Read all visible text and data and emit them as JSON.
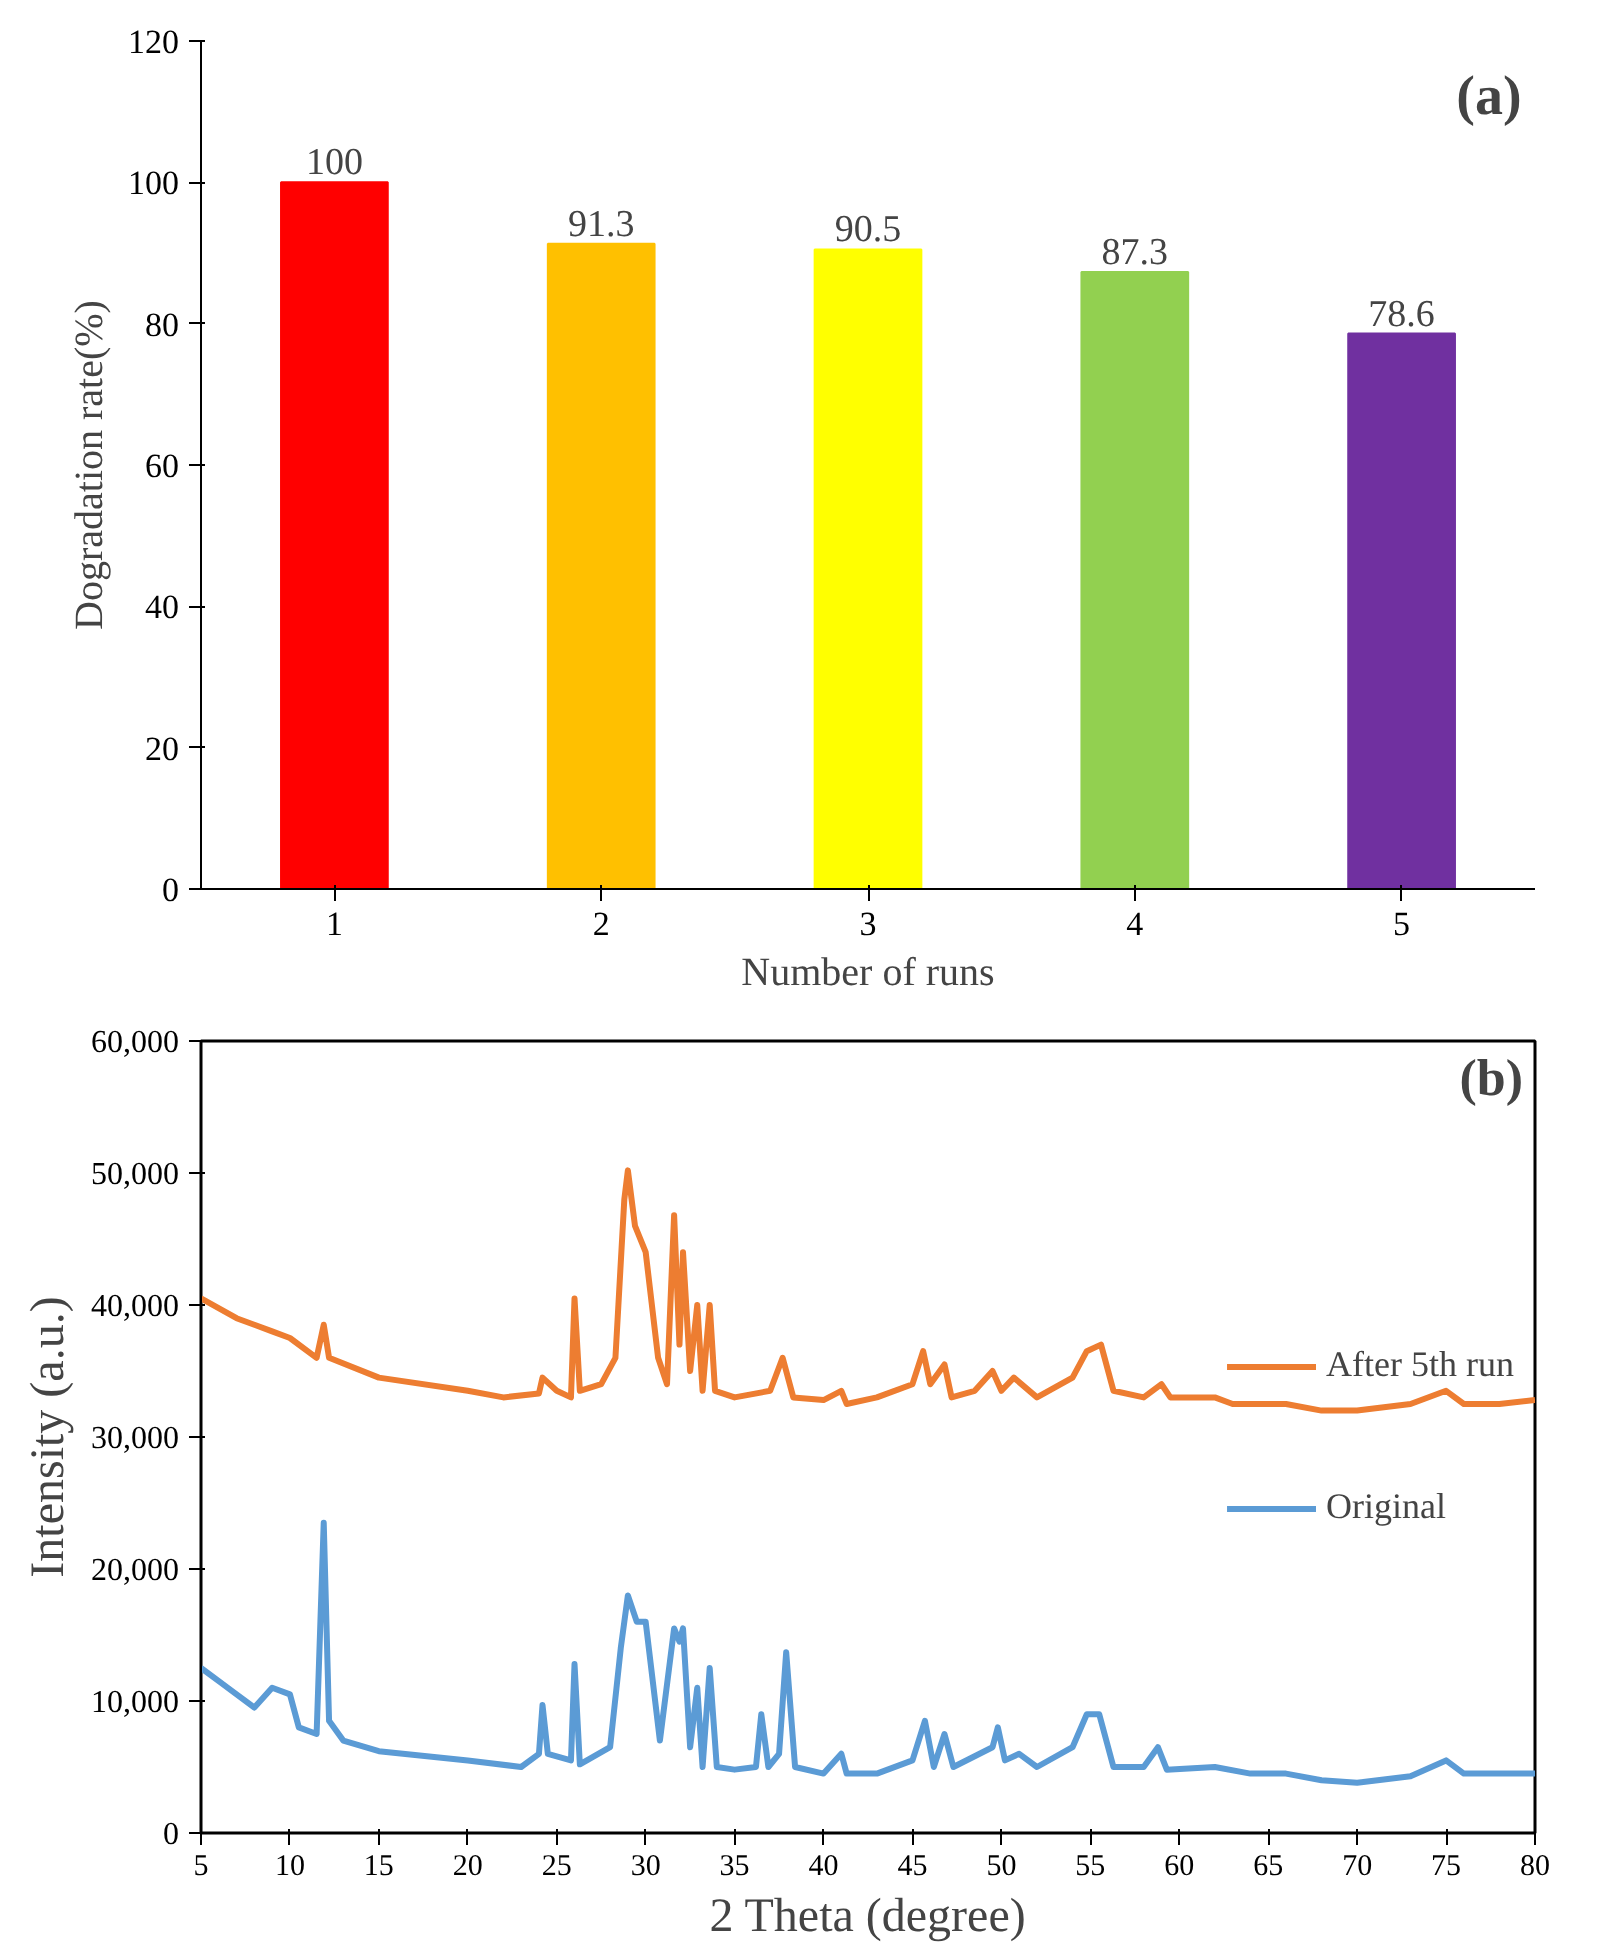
{
  "chart_data": [
    {
      "type": "bar",
      "categories": [
        "1",
        "2",
        "3",
        "4",
        "5"
      ],
      "values": [
        100,
        91.3,
        90.5,
        87.3,
        78.6
      ],
      "colors": [
        "#ff0000",
        "#ffc000",
        "#ffff00",
        "#92d050",
        "#7030a0"
      ],
      "xlabel": "Number of runs",
      "ylabel": "Dogradation rate(%)",
      "ylim": [
        0,
        120
      ],
      "yticks": [
        0,
        20,
        40,
        60,
        80,
        100,
        120
      ],
      "data_labels": true,
      "annotations": [
        "(a)"
      ]
    },
    {
      "type": "line",
      "xlabel": "2 Theta (degree)",
      "ylabel": "Intensity (a.u.)",
      "xlim": [
        5,
        80
      ],
      "xticks": [
        5,
        10,
        15,
        20,
        25,
        30,
        35,
        40,
        45,
        50,
        55,
        60,
        65,
        70,
        75,
        80
      ],
      "ylim": [
        0,
        60000
      ],
      "yticks": [
        {
          "value": 0,
          "label": "0"
        },
        {
          "value": 10000,
          "label": "10,000"
        },
        {
          "value": 20000,
          "label": "20,000"
        },
        {
          "value": 30000,
          "label": "30,000"
        },
        {
          "value": 40000,
          "label": "40,000"
        },
        {
          "value": 50000,
          "label": "50,000"
        },
        {
          "value": 60000,
          "label": "60,000"
        }
      ],
      "legend": "right",
      "annotations": [
        "(b)"
      ],
      "series": [
        {
          "name": "After 5th run",
          "color": "#ed7d31",
          "x": [
            5,
            7,
            9,
            10,
            11.5,
            11.9,
            12.2,
            15,
            20,
            22,
            24,
            24.2,
            25,
            25.8,
            26.0,
            26.3,
            27.5,
            28.3,
            28.8,
            29.0,
            29.4,
            30,
            30.7,
            31.2,
            31.6,
            31.9,
            32.1,
            32.5,
            32.9,
            33.2,
            33.6,
            33.9,
            35,
            37,
            37.7,
            38.3,
            40,
            41,
            41.3,
            43,
            45,
            45.6,
            46,
            46.8,
            47.2,
            48.5,
            49.5,
            50,
            50.7,
            52,
            54,
            54.8,
            55.6,
            56.3,
            58,
            59,
            59.5,
            62,
            63,
            66,
            68,
            70,
            73,
            75,
            76,
            78,
            80
          ],
          "values": [
            40500,
            39000,
            38000,
            37500,
            36000,
            38500,
            36000,
            34500,
            33500,
            33000,
            33300,
            34500,
            33500,
            33000,
            40500,
            33500,
            34000,
            36000,
            48000,
            50200,
            46000,
            44000,
            36000,
            34000,
            46800,
            37000,
            44000,
            35000,
            40000,
            33500,
            40000,
            33500,
            33000,
            33500,
            36000,
            33000,
            32800,
            33500,
            32500,
            33000,
            34000,
            36500,
            34000,
            35500,
            33000,
            33500,
            35000,
            33500,
            34500,
            33000,
            34500,
            36500,
            37000,
            33500,
            33000,
            34000,
            33000,
            33000,
            32500,
            32500,
            32000,
            32000,
            32500,
            33500,
            32500,
            32500,
            32800
          ]
        },
        {
          "name": "Original",
          "color": "#5b9bd5",
          "x": [
            5,
            6,
            7,
            8,
            9,
            10,
            10.5,
            11.5,
            11.9,
            12.2,
            13,
            15,
            20,
            23,
            24,
            24.2,
            24.5,
            25.8,
            26,
            26.3,
            28,
            28.6,
            29,
            29.5,
            30,
            30.8,
            31.6,
            31.9,
            32.1,
            32.5,
            32.9,
            33.2,
            33.6,
            34,
            35,
            36.2,
            36.5,
            36.9,
            37.5,
            37.9,
            38.4,
            40,
            41,
            41.3,
            43,
            45,
            45.7,
            46.2,
            46.8,
            47.3,
            49.5,
            49.8,
            50.2,
            51,
            52,
            54,
            54.8,
            55.5,
            56.3,
            58,
            58.8,
            59.3,
            62,
            64,
            66,
            68,
            70,
            73,
            75,
            76,
            78,
            80
          ],
          "values": [
            12500,
            11500,
            10500,
            9500,
            11000,
            10500,
            8000,
            7500,
            23500,
            8500,
            7000,
            6200,
            5500,
            5000,
            6000,
            9700,
            6000,
            5500,
            12800,
            5200,
            6500,
            14000,
            18000,
            16000,
            16000,
            7000,
            15500,
            14500,
            15500,
            6500,
            11000,
            5000,
            12500,
            5000,
            4800,
            5000,
            9000,
            5000,
            6000,
            13700,
            5000,
            4500,
            6000,
            4500,
            4500,
            5500,
            8500,
            5000,
            7500,
            5000,
            6500,
            8000,
            5500,
            6000,
            5000,
            6500,
            9000,
            9000,
            5000,
            5000,
            6500,
            4800,
            5000,
            4500,
            4500,
            4000,
            3800,
            4300,
            5500,
            4500,
            4500,
            4500
          ]
        }
      ]
    }
  ]
}
